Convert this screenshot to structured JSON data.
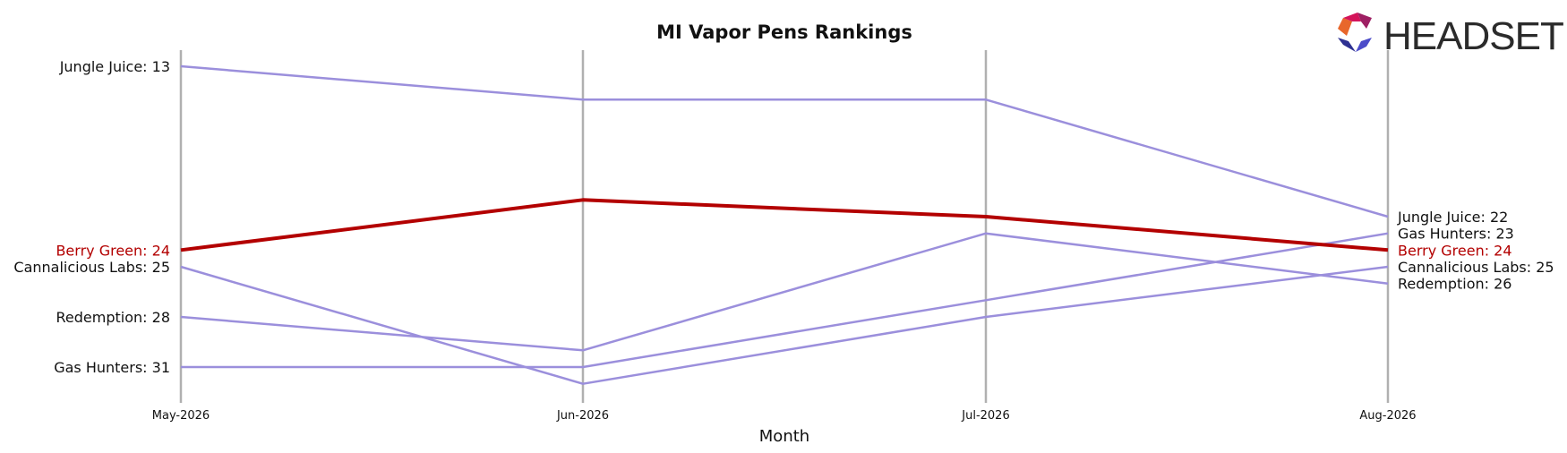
{
  "chart_data": {
    "type": "line",
    "title": "MI Vapor Pens Rankings",
    "xlabel": "Month",
    "ylabel": "",
    "categories": [
      "May-2026",
      "Jun-2026",
      "Jul-2026",
      "Aug-2026"
    ],
    "y_inverted": true,
    "ylim": [
      11,
      32
    ],
    "grid": "vertical lines at each month",
    "highlight_color": "#b30000",
    "series_color": "#9b8fdc",
    "label_color": "#111111",
    "series": [
      {
        "name": "Jungle Juice",
        "values": [
          13,
          15,
          15,
          22
        ],
        "highlight": false,
        "left_label": "Jungle Juice: 13",
        "right_label": "Jungle Juice: 22"
      },
      {
        "name": "Berry Green",
        "values": [
          24,
          21,
          22,
          24
        ],
        "highlight": true,
        "left_label": "Berry Green: 24",
        "right_label": "Berry Green: 24"
      },
      {
        "name": "Cannalicious Labs",
        "values": [
          25,
          32,
          28,
          25
        ],
        "highlight": false,
        "left_label": "Cannalicious Labs: 25",
        "right_label": "Cannalicious Labs: 25"
      },
      {
        "name": "Redemption",
        "values": [
          28,
          30,
          23,
          26
        ],
        "highlight": false,
        "left_label": "Redemption: 28",
        "right_label": "Redemption: 26"
      },
      {
        "name": "Gas Hunters",
        "values": [
          31,
          31,
          27,
          23
        ],
        "highlight": false,
        "left_label": "Gas Hunters: 31",
        "right_label": "Gas Hunters: 23"
      }
    ]
  },
  "logo": {
    "text": "HEADSET",
    "colors": [
      "#e8672b",
      "#d4145a",
      "#9e1f63",
      "#2e3192",
      "#4c4cc9"
    ]
  }
}
